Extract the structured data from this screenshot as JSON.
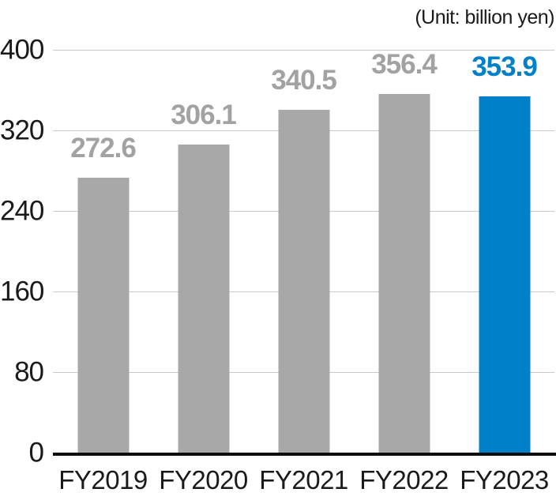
{
  "unit_label": "(Unit: billion yen)",
  "colors": {
    "bar_default": "#a8a8a8",
    "bar_highlight": "#0080c8",
    "value_label_default": "#a2a2a2",
    "value_label_highlight": "#0080c8",
    "gridline": "#c9c9c9",
    "axis_line": "#0d0d0d",
    "tick_text": "#1a1a1a"
  },
  "chart_data": {
    "type": "bar",
    "title": "",
    "unit": "(Unit: billion yen)",
    "categories": [
      "FY2019",
      "FY2020",
      "FY2021",
      "FY2022",
      "FY2023"
    ],
    "values": [
      272.6,
      306.1,
      340.5,
      356.4,
      353.9
    ],
    "value_labels": [
      "272.6",
      "306.1",
      "340.5",
      "356.4",
      "353.9"
    ],
    "highlight_index": 4,
    "xlabel": "",
    "ylabel": "",
    "ylim": [
      0,
      400
    ],
    "yticks": [
      0,
      80,
      160,
      240,
      320,
      400
    ],
    "grid": "horizontal",
    "legend": "none"
  }
}
